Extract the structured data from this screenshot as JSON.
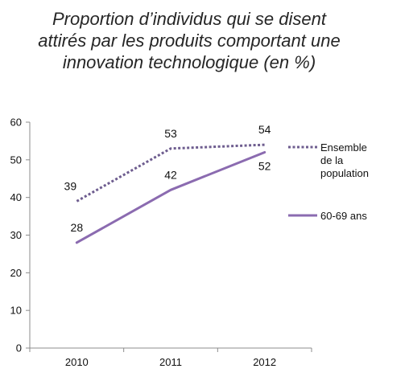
{
  "title_lines": [
    "Proportion d’individus qui se disent",
    "attirés par les produits comportant une",
    "innovation technologique (en %)"
  ],
  "chart_data": {
    "type": "line",
    "title": "Proportion d’individus qui se disent attirés par les produits comportant une innovation technologique (en %)",
    "categories": [
      "2010",
      "2011",
      "2012"
    ],
    "ylim": [
      0,
      60
    ],
    "yticks": [
      0,
      10,
      20,
      30,
      40,
      50,
      60
    ],
    "grid": false,
    "legend_position": "right",
    "series": [
      {
        "name": "Ensemble de la population",
        "legend_lines": [
          "Ensemble",
          "de la",
          "population"
        ],
        "values": [
          39,
          53,
          54
        ],
        "style": "dotted",
        "color": "#6e5d8f"
      },
      {
        "name": "60-69 ans",
        "legend_lines": [
          "60-69 ans"
        ],
        "values": [
          28,
          42,
          52
        ],
        "style": "solid",
        "color": "#8b6bb0"
      }
    ]
  }
}
